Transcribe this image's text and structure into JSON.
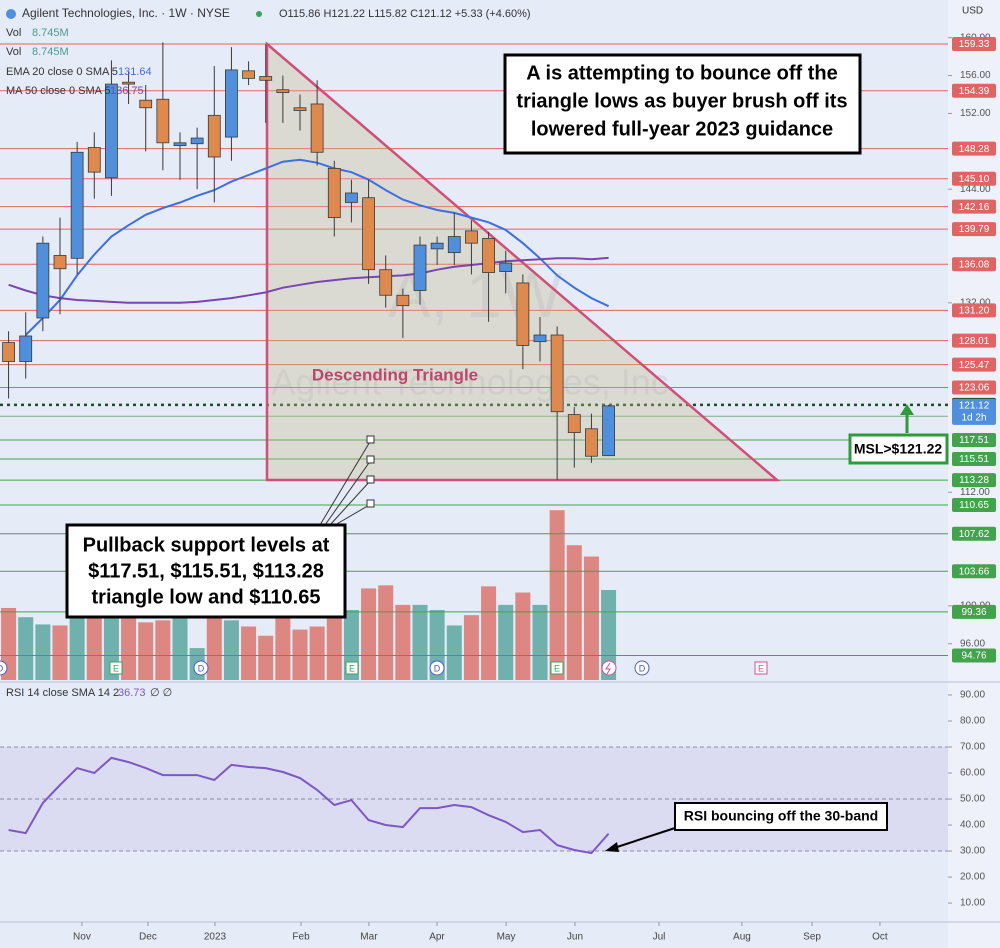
{
  "chart_data": [
    {
      "type": "candlestick",
      "title": "Agilent Technologies, Inc. · 1W · NYSE",
      "subtitle": "O115.86 H121.22 L115.82 C121.12 +5.33 (+4.60%)",
      "currency": "USD",
      "up_color": "#4f8fdc",
      "down_color": "#de8a4e",
      "categories": [
        null,
        null,
        null,
        null,
        null,
        null,
        null,
        null,
        null,
        null,
        null,
        null,
        null,
        null,
        null,
        null,
        null,
        null,
        null,
        null,
        null,
        null,
        null,
        null,
        null,
        null,
        null,
        null,
        null,
        null,
        null,
        null,
        null,
        null,
        null,
        null
      ],
      "open": [
        127.8,
        125.8,
        130.4,
        137.0,
        136.7,
        148.4,
        145.2,
        155.3,
        153.4,
        153.5,
        148.6,
        148.8,
        151.8,
        149.5,
        156.5,
        155.9,
        154.5,
        152.6,
        153.0,
        146.2,
        142.6,
        143.1,
        135.5,
        132.8,
        133.3,
        137.7,
        137.3,
        139.6,
        138.8,
        135.3,
        134.1,
        127.9,
        128.6,
        120.2,
        118.7,
        115.86
      ],
      "high": [
        129.0,
        131.0,
        139.0,
        141.0,
        149.0,
        150.0,
        157.6,
        156.4,
        155.0,
        159.5,
        150.0,
        150.5,
        157.0,
        159.0,
        157.5,
        159.3,
        156.0,
        154.0,
        155.5,
        147.0,
        145.0,
        145.0,
        137.0,
        133.5,
        139.0,
        139.0,
        141.5,
        140.7,
        139.5,
        137.5,
        135.0,
        130.5,
        129.5,
        121.0,
        120.3,
        121.22
      ],
      "low": [
        121.9,
        124.0,
        129.0,
        130.8,
        135.0,
        143.0,
        143.3,
        153.0,
        148.0,
        146.0,
        145.0,
        144.0,
        142.6,
        147.0,
        155.0,
        151.0,
        151.0,
        150.2,
        146.5,
        139.0,
        140.5,
        134.0,
        131.5,
        128.3,
        131.8,
        136.0,
        136.0,
        135.0,
        130.0,
        133.0,
        125.0,
        125.8,
        113.28,
        114.6,
        115.1,
        115.82
      ],
      "close": [
        125.8,
        128.5,
        138.3,
        135.6,
        147.9,
        145.8,
        155.1,
        155.1,
        152.6,
        148.9,
        148.9,
        149.4,
        147.4,
        156.6,
        155.7,
        155.5,
        154.2,
        152.3,
        147.9,
        141.0,
        143.6,
        135.5,
        132.8,
        131.7,
        138.1,
        138.3,
        139.0,
        138.3,
        135.2,
        136.2,
        127.5,
        128.6,
        120.5,
        118.3,
        115.8,
        121.12
      ],
      "volume": {
        "name": "Vol",
        "legend_value": "8.745M",
        "up_color": "#5aa6a0",
        "down_color": "#d9766c",
        "values": [
          7.0,
          6.1,
          5.4,
          5.3,
          6.8,
          6.0,
          6.6,
          6.0,
          5.6,
          5.8,
          6.0,
          3.1,
          6.0,
          5.8,
          5.2,
          4.3,
          6.0,
          4.9,
          5.2,
          7.5,
          6.8,
          8.9,
          9.2,
          7.3,
          7.3,
          6.8,
          5.3,
          6.3,
          9.1,
          7.3,
          8.5,
          7.3,
          16.5,
          13.1,
          12.0,
          8.745
        ]
      },
      "volume_legend_2": {
        "name": "Vol",
        "legend_value": "8.745M"
      },
      "series": [
        {
          "name": "EMA 20 close 0 SMA 5",
          "legend_value": "131.64",
          "color": "#3d6fe0",
          "values": [
            null,
            128.6,
            130.4,
            132.3,
            134.9,
            137.1,
            139.0,
            140.2,
            141.3,
            142.0,
            142.6,
            143.3,
            143.9,
            144.8,
            145.5,
            146.2,
            146.9,
            147.1,
            146.8,
            146.2,
            145.8,
            145.0,
            143.9,
            142.9,
            142.3,
            141.8,
            141.5,
            141.0,
            140.5,
            139.7,
            138.3,
            136.7,
            134.9,
            133.6,
            132.5,
            131.64
          ]
        },
        {
          "name": "MA 50 close 0 SMA 5",
          "legend_value": "136.75",
          "color": "#7a45b0",
          "values": [
            133.9,
            133.3,
            132.8,
            132.5,
            132.3,
            132.2,
            132.1,
            132.0,
            132.0,
            132.0,
            132.0,
            132.1,
            132.3,
            132.5,
            132.8,
            133.1,
            133.6,
            133.9,
            134.2,
            134.4,
            134.6,
            134.7,
            134.8,
            134.9,
            135.1,
            135.5,
            135.8,
            136.0,
            136.2,
            136.4,
            136.5,
            136.6,
            136.7,
            136.7,
            136.6,
            136.75
          ]
        }
      ],
      "xlim": [
        -0.5,
        54.8
      ],
      "xticks": [
        {
          "value": 4.28,
          "label": "Nov"
        },
        {
          "value": 8.13,
          "label": "Dec"
        },
        {
          "value": 12.04,
          "label": "2023"
        },
        {
          "value": 17.06,
          "label": "Feb"
        },
        {
          "value": 21.02,
          "label": "Mar"
        },
        {
          "value": 24.99,
          "label": "Apr"
        },
        {
          "value": 29.02,
          "label": "May"
        },
        {
          "value": 33.04,
          "label": "Jun"
        },
        {
          "value": 37.94,
          "label": "Jul"
        },
        {
          "value": 42.78,
          "label": "Aug"
        },
        {
          "value": 46.87,
          "label": "Sep"
        },
        {
          "value": 50.83,
          "label": "Oct"
        }
      ],
      "ylim": [
        92.17,
        163.98
      ],
      "yticks": [
        {
          "value": 160,
          "label": "160.00"
        },
        {
          "value": 156,
          "label": "156.00"
        },
        {
          "value": 152,
          "label": "152.00"
        },
        {
          "value": 144,
          "label": "144.00"
        },
        {
          "value": 132,
          "label": "132.00"
        },
        {
          "value": 112,
          "label": "112.00"
        },
        {
          "value": 100,
          "label": "100.00"
        },
        {
          "value": 96,
          "label": "96.00"
        }
      ],
      "levels": [
        {
          "value": 159.33,
          "color": "#e06464"
        },
        {
          "value": 154.39,
          "color": "#e06464"
        },
        {
          "value": 148.28,
          "color": "#e06464"
        },
        {
          "value": 145.1,
          "label": "145.10",
          "color": "#e06464"
        },
        {
          "value": 142.16,
          "color": "#e06464"
        },
        {
          "value": 139.79,
          "color": "#e06464"
        },
        {
          "value": 136.08,
          "color": "#e06464"
        },
        {
          "value": 131.2,
          "label": "131.20",
          "color": "#e06464"
        },
        {
          "value": 128.01,
          "color": "#e06464"
        },
        {
          "value": 125.47,
          "color": "#e06464"
        },
        {
          "value": 123.06,
          "color": "#e06464"
        },
        {
          "value": 121.22,
          "color": "#1f4d2a",
          "style": "dotted"
        },
        {
          "value": 120.02,
          "color": "#7fae86"
        },
        {
          "value": 117.51,
          "color": "#43a34c"
        },
        {
          "value": 115.51,
          "color": "#43a34c"
        },
        {
          "value": 113.28,
          "color": "#43a34c"
        },
        {
          "value": 110.65,
          "color": "#43a34c"
        },
        {
          "value": 107.62,
          "color": "#43a34c"
        },
        {
          "value": 103.66,
          "color": "#43a34c"
        },
        {
          "value": 99.36,
          "color": "#43a34c"
        },
        {
          "value": 94.76,
          "color": "#43a34c"
        }
      ],
      "last_price": {
        "value": 121.12,
        "countdown": "1d 2h",
        "color": "#4f8fdc"
      },
      "watermark": [
        "A, 1W",
        "Agilent Technologies, Inc."
      ],
      "events": [
        "D",
        "E",
        "D",
        "E",
        "D",
        "E",
        "D",
        "E"
      ],
      "annotations": {
        "guidance": [
          "A is attempting to bounce off the",
          "triangle lows as buyer brush off its",
          "lowered full-year 2023 guidance"
        ],
        "pullback": [
          "Pullback support levels at",
          "$117.51, $115.51, $113.28",
          "triangle low and $110.65"
        ],
        "pattern": "Descending Triangle",
        "msl": "MSL>$121.22"
      }
    },
    {
      "type": "line",
      "title": "RSI 14 close SMA 14 2",
      "legend_value": "36.73",
      "legend_extra": "∅ ∅",
      "color": "#7e57c2",
      "values": [
        38.1,
        36.9,
        48.5,
        55.4,
        61.9,
        60.0,
        65.8,
        64.2,
        61.9,
        59.2,
        59.2,
        59.2,
        57.3,
        63.1,
        62.3,
        61.9,
        60.4,
        58.1,
        53.5,
        47.7,
        49.6,
        41.9,
        40.0,
        39.2,
        46.5,
        46.5,
        47.7,
        46.9,
        43.8,
        41.2,
        37.3,
        38.1,
        32.3,
        30.4,
        29.2,
        36.73
      ],
      "ylim": [
        3.5,
        94.6
      ],
      "yticks": [
        {
          "value": 90,
          "label": "90.00"
        },
        {
          "value": 80,
          "label": "80.00"
        },
        {
          "value": 70,
          "label": "70.00"
        },
        {
          "value": 60,
          "label": "60.00"
        },
        {
          "value": 50,
          "label": "50.00"
        },
        {
          "value": 40,
          "label": "40.00"
        },
        {
          "value": 30,
          "label": "30.00"
        },
        {
          "value": 20,
          "label": "20.00"
        },
        {
          "value": 10,
          "label": "10.00"
        }
      ],
      "bands": [
        70,
        50,
        30
      ],
      "annotation": "RSI bouncing off the 30-band"
    }
  ]
}
